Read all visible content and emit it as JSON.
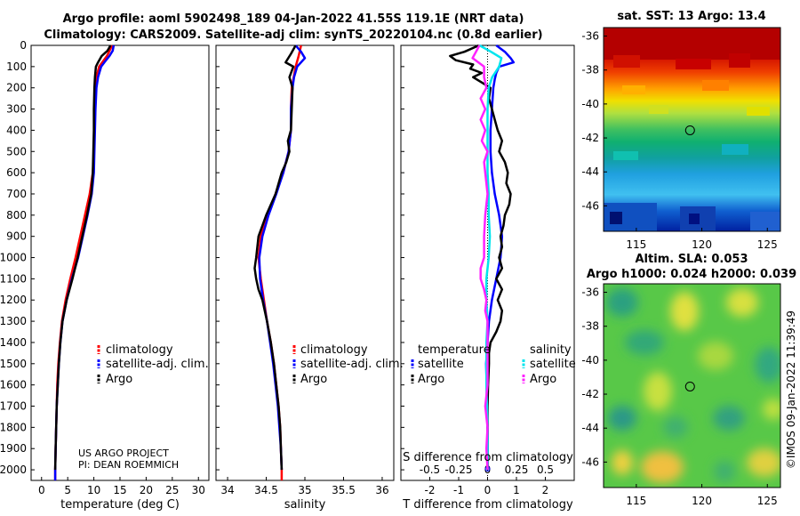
{
  "title_line1": "Argo profile: aoml 5902498_189 04-Jan-2022 41.55S 119.1E (NRT data)",
  "title_line2": "Climatology: CARS2009. Satellite-adj clim: synTS_20220104.nc (0.8d earlier)",
  "project_line1": "US ARGO PROJECT",
  "project_line2": "PI: DEAN ROEMMICH",
  "credit": "©IMOS 09-Jan-2022 11:39:49",
  "colors": {
    "climatology": "#ff0000",
    "satellite": "#0000ff",
    "argo": "#000000",
    "sat_diff": "#00e5ee",
    "argo_s_diff": "#ff22ff"
  },
  "chart_data": [
    {
      "type": "line",
      "name": "temperature-profile",
      "xlabel": "temperature (deg C)",
      "ylabel": "",
      "xlim": [
        -2,
        32
      ],
      "ylim": [
        2050,
        0
      ],
      "xticks": [
        0,
        5,
        10,
        15,
        20,
        25,
        30
      ],
      "yticks": [
        0,
        100,
        200,
        300,
        400,
        500,
        600,
        700,
        800,
        900,
        1000,
        1100,
        1200,
        1300,
        1400,
        1500,
        1600,
        1700,
        1800,
        1900,
        2000
      ],
      "legend": [
        "climatology",
        "satellite-adj. clim.",
        "Argo"
      ],
      "series": [
        {
          "name": "climatology",
          "depth": [
            0,
            50,
            100,
            150,
            200,
            300,
            400,
            500,
            600,
            700,
            800,
            900,
            1000,
            1100,
            1200,
            1300,
            1400,
            1500,
            1600,
            1700,
            1800,
            1900,
            2000,
            2050
          ],
          "values": [
            13.5,
            12.5,
            11.0,
            10.5,
            10.3,
            10.2,
            10.1,
            10.0,
            9.8,
            9.2,
            8.3,
            7.4,
            6.5,
            5.5,
            4.6,
            3.9,
            3.5,
            3.2,
            3.0,
            2.9,
            2.8,
            2.7,
            2.6,
            2.6
          ]
        },
        {
          "name": "satellite-adj. clim.",
          "depth": [
            0,
            25,
            50,
            80,
            100,
            150,
            200,
            300,
            400,
            500,
            600,
            700,
            800,
            900,
            1000,
            1100,
            1200,
            1300,
            1400,
            1500,
            1600,
            1700,
            1800,
            1900,
            2000,
            2050
          ],
          "values": [
            13.8,
            13.6,
            13.0,
            12.0,
            11.4,
            10.8,
            10.5,
            10.3,
            10.2,
            10.1,
            10.0,
            9.6,
            8.8,
            7.9,
            7.0,
            5.8,
            4.8,
            4.0,
            3.6,
            3.3,
            3.1,
            2.9,
            2.8,
            2.7,
            2.6,
            2.6
          ]
        },
        {
          "name": "Argo",
          "depth": [
            0,
            25,
            50,
            80,
            100,
            150,
            200,
            300,
            400,
            500,
            600,
            700,
            800,
            900,
            1000,
            1100,
            1200,
            1300,
            1400,
            1500,
            1600,
            1700,
            1800,
            1900,
            2000
          ],
          "values": [
            13.2,
            12.6,
            11.5,
            10.8,
            10.4,
            10.2,
            10.1,
            10.0,
            10.0,
            9.9,
            9.8,
            9.5,
            8.7,
            7.8,
            6.9,
            5.9,
            4.8,
            4.0,
            3.6,
            3.3,
            3.1,
            2.9,
            2.8,
            2.7,
            2.6
          ]
        }
      ]
    },
    {
      "type": "line",
      "name": "salinity-profile",
      "xlabel": "salinity",
      "ylabel": "",
      "xlim": [
        33.85,
        36.15
      ],
      "ylim": [
        2050,
        0
      ],
      "xticks": [
        34,
        34.5,
        35,
        35.5,
        36
      ],
      "legend": [
        "climatology",
        "satellite-adj. clim.",
        "Argo"
      ],
      "series": [
        {
          "name": "climatology",
          "depth": [
            0,
            50,
            100,
            200,
            300,
            400,
            500,
            600,
            700,
            800,
            900,
            1000,
            1100,
            1200,
            1300,
            1400,
            1500,
            1600,
            1700,
            1800,
            1900,
            2000,
            2050
          ],
          "values": [
            34.95,
            34.92,
            34.88,
            34.83,
            34.82,
            34.82,
            34.79,
            34.72,
            34.62,
            34.52,
            34.43,
            34.4,
            34.43,
            34.47,
            34.51,
            34.56,
            34.6,
            34.63,
            34.66,
            34.68,
            34.69,
            34.7,
            34.7
          ]
        },
        {
          "name": "satellite-adj. clim.",
          "depth": [
            0,
            30,
            60,
            100,
            150,
            200,
            300,
            400,
            500,
            600,
            700,
            800,
            900,
            1000,
            1100,
            1200,
            1300,
            1400,
            1500,
            1600,
            1700,
            1800,
            1900,
            2000
          ],
          "values": [
            34.88,
            34.95,
            35.0,
            34.9,
            34.86,
            34.84,
            34.82,
            34.82,
            34.79,
            34.72,
            34.63,
            34.53,
            34.45,
            34.41,
            34.42,
            34.46,
            34.51,
            34.55,
            34.59,
            34.62,
            34.65,
            34.67,
            34.69,
            34.7
          ]
        },
        {
          "name": "Argo",
          "depth": [
            0,
            40,
            80,
            100,
            150,
            200,
            300,
            400,
            450,
            500,
            550,
            600,
            700,
            800,
            900,
            1000,
            1050,
            1100,
            1150,
            1200,
            1300,
            1400,
            1500,
            1600,
            1700,
            1800,
            1900,
            2000
          ],
          "values": [
            34.88,
            34.82,
            34.75,
            34.85,
            34.8,
            34.84,
            34.83,
            34.82,
            34.78,
            34.8,
            34.76,
            34.7,
            34.62,
            34.5,
            34.4,
            34.37,
            34.35,
            34.37,
            34.4,
            34.45,
            34.51,
            34.56,
            34.6,
            34.63,
            34.66,
            34.68,
            34.69,
            34.7
          ]
        }
      ]
    },
    {
      "type": "line",
      "name": "difference-profile",
      "xlabel": "T difference from climatology",
      "xlabel_top": "S difference from climatology",
      "xlim": [
        -3,
        3
      ],
      "ylim": [
        2050,
        0
      ],
      "xticks": [
        -2,
        -1,
        0,
        1,
        2
      ],
      "xticks_s": [
        "-0.5",
        "-0.25",
        "0",
        "0.25",
        "0.5"
      ],
      "legend_temperature_title": "temperature",
      "legend_salinity_title": "salinity",
      "legend_temperature": [
        "satellite",
        "Argo"
      ],
      "legend_salinity": [
        "satellite",
        "Argo"
      ],
      "series": [
        {
          "name": "T satellite",
          "depth": [
            0,
            30,
            60,
            80,
            100,
            130,
            160,
            200,
            300,
            400,
            500,
            600,
            700,
            800,
            900,
            1000,
            1100,
            1200,
            1300,
            1400,
            1500,
            1600,
            1800,
            2000
          ],
          "values": [
            0.3,
            0.6,
            0.8,
            0.9,
            0.4,
            0.3,
            0.25,
            0.2,
            0.15,
            0.1,
            0.1,
            0.15,
            0.25,
            0.4,
            0.5,
            0.45,
            0.3,
            0.15,
            0.05,
            0.0,
            -0.05,
            -0.03,
            0.0,
            0.0
          ]
        },
        {
          "name": "T Argo",
          "depth": [
            0,
            30,
            50,
            70,
            90,
            110,
            130,
            150,
            200,
            250,
            300,
            350,
            400,
            450,
            500,
            550,
            600,
            650,
            700,
            750,
            800,
            850,
            900,
            950,
            1000,
            1050,
            1100,
            1150,
            1200,
            1250,
            1300,
            1350,
            1400,
            1450,
            1500,
            1600,
            1700,
            1800,
            1900,
            2000
          ],
          "values": [
            -0.3,
            -0.8,
            -1.3,
            -1.1,
            -0.5,
            -0.6,
            -0.2,
            -0.5,
            0.1,
            0.05,
            0.15,
            0.25,
            0.35,
            0.5,
            0.4,
            0.6,
            0.7,
            0.65,
            0.8,
            0.75,
            0.6,
            0.55,
            0.45,
            0.5,
            0.4,
            0.5,
            0.3,
            0.5,
            0.35,
            0.5,
            0.45,
            0.3,
            0.1,
            0.05,
            0.05,
            0.02,
            0.0,
            0.0,
            0.0,
            0.0
          ]
        },
        {
          "name": "S satellite",
          "depth": [
            0,
            30,
            60,
            100,
            150,
            200,
            300,
            400,
            500,
            600,
            700,
            800,
            900,
            1000,
            1100,
            1200,
            1300,
            1400,
            1500,
            1600,
            1800,
            2000
          ],
          "values": [
            -0.07,
            0.03,
            0.12,
            0.1,
            0.04,
            0.01,
            0.0,
            0.0,
            0.0,
            0.0,
            0.01,
            0.01,
            0.02,
            0.01,
            -0.01,
            -0.01,
            0.0,
            -0.01,
            -0.01,
            -0.01,
            0.0,
            0.0
          ]
        },
        {
          "name": "S Argo",
          "depth": [
            0,
            30,
            60,
            100,
            150,
            200,
            250,
            300,
            350,
            400,
            450,
            500,
            550,
            600,
            700,
            800,
            900,
            1000,
            1050,
            1100,
            1150,
            1200,
            1250,
            1300,
            1400,
            1500,
            1600,
            1700,
            1800,
            1900,
            2000
          ],
          "values": [
            -0.07,
            -0.1,
            -0.13,
            -0.03,
            -0.03,
            -0.01,
            -0.06,
            -0.02,
            -0.06,
            -0.02,
            -0.05,
            0.0,
            -0.03,
            -0.02,
            0.0,
            -0.02,
            -0.03,
            -0.03,
            -0.06,
            -0.06,
            -0.03,
            -0.01,
            -0.02,
            0.0,
            0.0,
            0.0,
            0.0,
            -0.02,
            0.0,
            -0.01,
            0.0
          ]
        }
      ]
    },
    {
      "type": "heatmap",
      "name": "sst-map",
      "title": "sat. SST: 13 Argo: 13.4",
      "xlim": [
        112.5,
        126
      ],
      "ylim": [
        -47.5,
        -35.5
      ],
      "xticks": [
        115,
        120,
        125
      ],
      "yticks": [
        -36,
        -38,
        -40,
        -42,
        -44,
        -46
      ],
      "argo_position": {
        "lon": 119.1,
        "lat": -41.55
      }
    },
    {
      "type": "heatmap",
      "name": "sla-map",
      "title_line1": "Altim. SLA: 0.053",
      "title_line2": "Argo h1000: 0.024 h2000: 0.039",
      "xlim": [
        112.5,
        126
      ],
      "ylim": [
        -47.5,
        -35.5
      ],
      "xticks": [
        115,
        120,
        125
      ],
      "yticks": [
        -36,
        -38,
        -40,
        -42,
        -44,
        -46
      ],
      "argo_position": {
        "lon": 119.1,
        "lat": -41.55
      }
    }
  ]
}
